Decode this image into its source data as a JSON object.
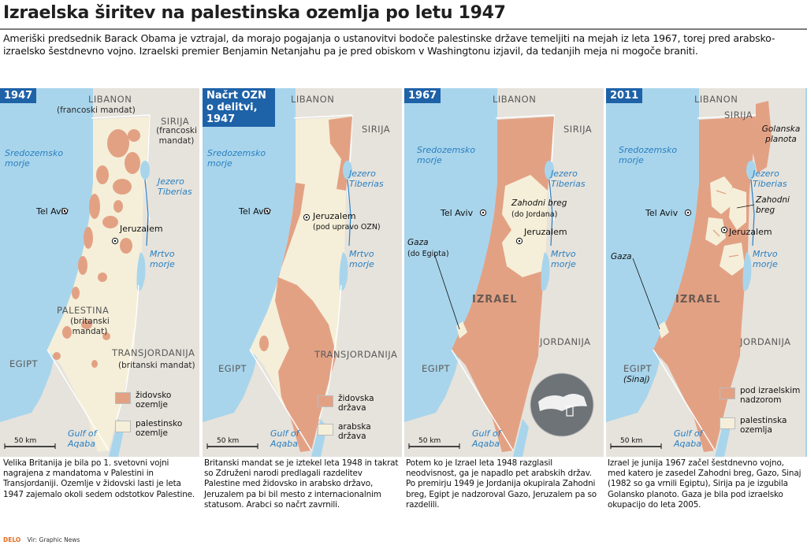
{
  "title": "Izraelska širitev na palestinska ozemlja po letu 1947",
  "intro": "Ameriški predsednik Barack Obama je vztrajal, da morajo pogajanja o ustanovitvi bodoče palestinske države temeljiti na mejah iz leta 1967, torej pred arabsko-izraelsko šestdnevno vojno. Izraelski premier Benjamin Netanjahu pa je pred obiskom v Washingtonu izjavil, da tedanjih meja ni mogoče braniti.",
  "colors": {
    "sea": "#a8d5ec",
    "land": "#e6e3dc",
    "jewish": "#e3a184",
    "palestinian": "#f5efd9",
    "tag": "#1e62a8"
  },
  "panels": [
    {
      "tag": "1947",
      "labels": {
        "lebanon": "LIBANON",
        "lebanon_sub": "(francoski mandat)",
        "syria": "SIRIJA",
        "syria_sub": "(francoski mandat)",
        "sea": "Sredozemsko morje",
        "tiberias": "Jezero Tiberias",
        "telaviv": "Tel Aviv",
        "jerusalem": "Jeruzalem",
        "deadsea": "Mrtvo morje",
        "palestine": "PALESTINA",
        "palestine_sub": "(britanski mandat)",
        "transjordan": "TRANSJORDANIJA",
        "transjordan_sub": "(britanski mandat)",
        "egypt": "EGIPT",
        "scale": "50 km",
        "aqaba": "Gulf of Aqaba"
      },
      "legend": [
        {
          "label": "židovsko ozemlje",
          "color": "#e3a184"
        },
        {
          "label": "palestinsko ozemlje",
          "color": "#f5efd9"
        }
      ],
      "caption": "Velika Britanija je bila po 1. svetovni vojni nagrajena z mandatoma v Palestini in Transjordaniji. Ozemlje v židovski lasti je leta 1947 zajemalo okoli sedem odstotkov Palestine."
    },
    {
      "tag": "Načrt OZN o delitvi, 1947",
      "labels": {
        "lebanon": "LIBANON",
        "syria": "SIRIJA",
        "sea": "Sredozemsko morje",
        "tiberias": "Jezero Tiberias",
        "telaviv": "Tel Aviv",
        "jerusalem": "Jeruzalem",
        "jerusalem_sub": "(pod upravo OZN)",
        "deadsea": "Mrtvo morje",
        "transjordan": "TRANSJORDANIJA",
        "egypt": "EGIPT",
        "scale": "50 km",
        "aqaba": "Gulf of Aqaba"
      },
      "legend": [
        {
          "label": "židovska država",
          "color": "#e3a184"
        },
        {
          "label": "arabska država",
          "color": "#f5efd9"
        }
      ],
      "caption": "Britanski mandat se je iztekel leta 1948 in takrat so Združeni narodi predlagali razdelitev Palestine med židovsko in arabsko državo, Jeruzalem pa bi bil mesto z internacionalnim statusom. Arabci so načrt zavrnili."
    },
    {
      "tag": "1967",
      "labels": {
        "lebanon": "LIBANON",
        "syria": "SIRIJA",
        "sea": "Sredozemsko morje",
        "tiberias": "Jezero Tiberias",
        "westbank": "Zahodni breg",
        "westbank_sub": "(do Jordana)",
        "telaviv": "Tel Aviv",
        "jerusalem": "Jeruzalem",
        "gaza": "Gaza",
        "gaza_sub": "(do Egipta)",
        "deadsea": "Mrtvo morje",
        "israel": "IZRAEL",
        "jordan": "JORDANIJA",
        "egypt": "EGIPT",
        "scale": "50 km",
        "aqaba": "Gulf of Aqaba"
      },
      "legend": [],
      "caption": "Potem ko je Izrael leta 1948 razglasil neodvisnost, ga je napadlo pet arabskih držav. Po premirju 1949 je Jordanija okupirala Zahodni breg, Egipt je nadzoroval Gazo, Jeruzalem pa so razdelili."
    },
    {
      "tag": "2011",
      "labels": {
        "lebanon": "LIBANON",
        "syria": "SIRIJA",
        "golan": "Golanska planota",
        "sea": "Sredozemsko morje",
        "tiberias": "Jezero Tiberias",
        "westbank": "Zahodni breg",
        "telaviv": "Tel Aviv",
        "jerusalem": "Jeruzalem",
        "gaza": "Gaza",
        "deadsea": "Mrtvo morje",
        "israel": "IZRAEL",
        "jordan": "JORDANIJA",
        "egypt": "EGIPT",
        "egypt_sub": "(Sinaj)",
        "scale": "50 km",
        "aqaba": "Gulf of Aqaba"
      },
      "legend": [
        {
          "label": "pod izraelskim nadzorom",
          "color": "#e3a184"
        },
        {
          "label": "palestinska ozemlja",
          "color": "#f5efd9"
        }
      ],
      "caption": "Izrael je junija 1967 začel šestdnevno vojno, med katero je zasedel Zahodni breg, Gazo, Sinaj (1982 so ga vrnili Egiptu), Sirija pa je izgubila Golansko planoto. Gaza je bila pod izraelsko okupacijo do leta 2005."
    }
  ],
  "footer": {
    "brand": "DELO",
    "source": "Vir: Graphic News"
  }
}
